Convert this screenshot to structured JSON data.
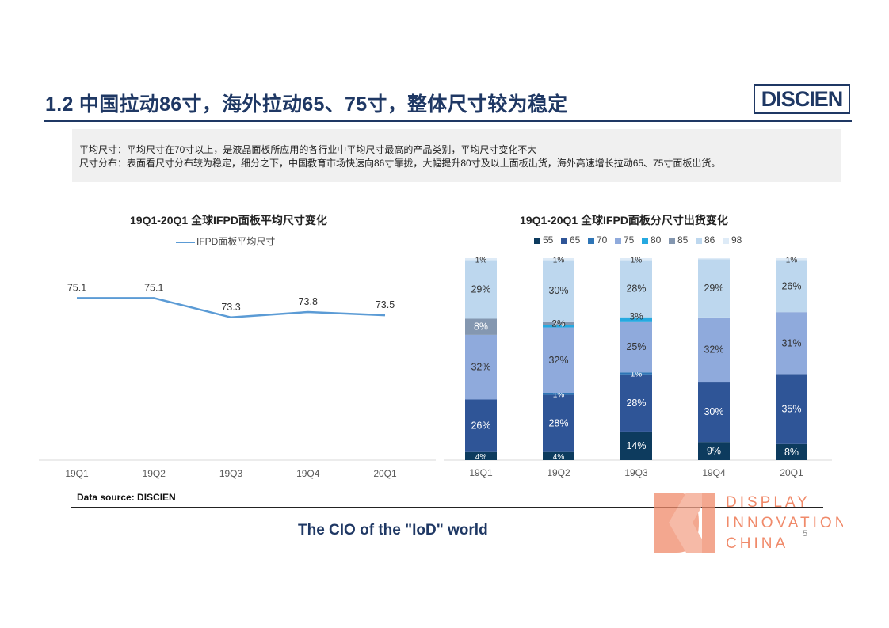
{
  "header": {
    "title": "1.2 中国拉动86寸，海外拉动65、75寸，整体尺寸较为稳定",
    "brand": "DISCIEN"
  },
  "info": {
    "line1": "平均尺寸：平均尺寸在70寸以上，是液晶面板所应用的各行业中平均尺寸最高的产品类别，平均尺寸变化不大",
    "line2": "尺寸分布：表面看尺寸分布较为稳定，细分之下，中国教育市场快速向86寸靠拢，大幅提升80寸及以上面板出货，海外高速增长拉动65、75寸面板出货。"
  },
  "chart_data": [
    {
      "type": "line",
      "title": "19Q1-20Q1 全球IFPD面板平均尺寸变化",
      "categories": [
        "19Q1",
        "19Q2",
        "19Q3",
        "19Q4",
        "20Q1"
      ],
      "series": [
        {
          "name": "IFPD面板平均尺寸",
          "values": [
            75.1,
            75.1,
            73.3,
            73.8,
            73.5
          ],
          "color": "#5b9bd5"
        }
      ],
      "ylim": [
        60,
        80
      ],
      "legend_position": "top",
      "grid": false
    },
    {
      "type": "bar",
      "stacked": true,
      "title": "19Q1-20Q1 全球IFPD面板分尺寸出货变化",
      "categories": [
        "19Q1",
        "19Q2",
        "19Q3",
        "19Q4",
        "20Q1"
      ],
      "series": [
        {
          "name": "55",
          "color": "#0d3b5e",
          "values": [
            4,
            4,
            14,
            9,
            8
          ],
          "labels": [
            "4%",
            "4%",
            "14%",
            "9%",
            "8%"
          ]
        },
        {
          "name": "65",
          "color": "#2f5597",
          "values": [
            26,
            28,
            28,
            30,
            35
          ],
          "labels": [
            "26%",
            "28%",
            "28%",
            "30%",
            "35%"
          ]
        },
        {
          "name": "70",
          "color": "#2e75b6",
          "values": [
            0,
            1,
            1,
            0,
            0
          ],
          "labels": [
            "",
            "1%",
            "1%",
            "",
            ""
          ]
        },
        {
          "name": "75",
          "color": "#8faadc",
          "values": [
            32,
            32,
            25,
            32,
            31
          ],
          "labels": [
            "32%",
            "32%",
            "25%",
            "32%",
            "31%"
          ]
        },
        {
          "name": "80",
          "color": "#26a9e0",
          "values": [
            0,
            1,
            2,
            0,
            0
          ],
          "labels": [
            "",
            "",
            "",
            "",
            ""
          ]
        },
        {
          "name": "85",
          "color": "#8497b0",
          "values": [
            8,
            2,
            0,
            0,
            0
          ],
          "labels": [
            "8%",
            "2%",
            "",
            "",
            ""
          ]
        },
        {
          "name": "86",
          "color": "#bdd7ee",
          "values": [
            29,
            30,
            28,
            29,
            26
          ],
          "labels": [
            "29%",
            "30%",
            "28%",
            "29%",
            "26%"
          ]
        },
        {
          "name": "98",
          "color": "#deebf7",
          "values": [
            1,
            1,
            1,
            0.5,
            1
          ],
          "labels": [
            "1%",
            "1%",
            "1%",
            "",
            "1%"
          ]
        }
      ],
      "extra_labels": [
        {
          "category": "19Q2",
          "text": "2%"
        },
        {
          "category": "19Q3",
          "text": "3%"
        }
      ],
      "legend_position": "top"
    }
  ],
  "footer": {
    "source": "Data source: DISCIEN",
    "tagline": "The CIO of the \"IoD\" world",
    "page_number": "5",
    "dic_line1": "DISPLAY",
    "dic_line2": "INNOVATION",
    "dic_line3": "CHINA"
  }
}
